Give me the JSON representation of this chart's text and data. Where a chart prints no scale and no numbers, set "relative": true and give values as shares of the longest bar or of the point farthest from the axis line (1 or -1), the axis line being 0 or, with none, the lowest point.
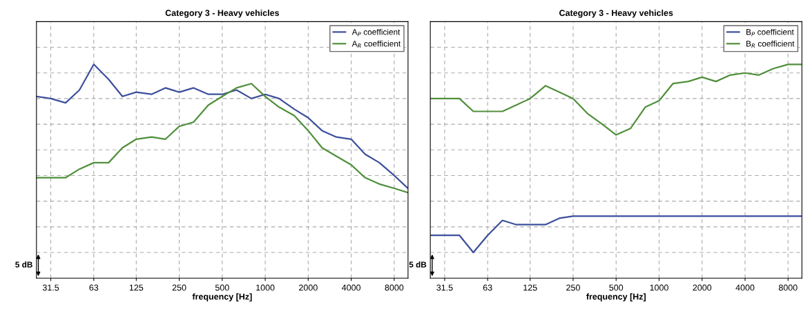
{
  "chart_data": [
    {
      "type": "line",
      "title": "Category 3 - Heavy vehicles",
      "xlabel": "frequency [Hz]",
      "relative": true,
      "log": "x",
      "grid": true,
      "legend": "top right",
      "tick_labels": "x",
      "marker": "none",
      "line_style": "solid",
      "x": [
        25,
        31.5,
        40,
        50,
        63,
        80,
        100,
        125,
        160,
        200,
        250,
        315,
        400,
        500,
        630,
        800,
        1000,
        1250,
        1600,
        2000,
        2500,
        3150,
        4000,
        5000,
        6300,
        8000,
        10000
      ],
      "xlim": [
        25,
        10000
      ],
      "xticks": [
        31.5,
        63,
        125,
        250,
        500,
        1000,
        2000,
        4000,
        8000
      ],
      "annotations": [
        "5 dB"
      ],
      "series": [
        {
          "name": "A$_{P}$ coefficient",
          "color": "#3c4f9c",
          "values": [
            0.85,
            0.84,
            0.82,
            0.88,
            1,
            0.93,
            0.85,
            0.87,
            0.86,
            0.89,
            0.87,
            0.89,
            0.86,
            0.86,
            0.88,
            0.84,
            0.86,
            0.84,
            0.79,
            0.75,
            0.69,
            0.66,
            0.65,
            0.58,
            0.54,
            0.48,
            0.42
          ]
        },
        {
          "name": "A$_{R}$ coefficient",
          "color": "#4f8f3a",
          "values": [
            0.47,
            0.47,
            0.47,
            0.51,
            0.54,
            0.54,
            0.61,
            0.65,
            0.66,
            0.65,
            0.71,
            0.73,
            0.81,
            0.85,
            0.89,
            0.91,
            0.85,
            0.8,
            0.76,
            0.69,
            0.61,
            0.57,
            0.53,
            0.47,
            0.44,
            0.42,
            0.4
          ]
        }
      ]
    },
    {
      "type": "line",
      "title": "Category 3 - Heavy vehicles",
      "xlabel": "frequency [Hz]",
      "relative": true,
      "log": "x",
      "grid": true,
      "legend": "top right",
      "tick_labels": "x",
      "marker": "none",
      "line_style": "solid",
      "x": [
        25,
        31.5,
        40,
        50,
        63,
        80,
        100,
        125,
        160,
        200,
        250,
        315,
        400,
        500,
        630,
        800,
        1000,
        1250,
        1600,
        2000,
        2500,
        3150,
        4000,
        5000,
        6300,
        8000,
        10000
      ],
      "xlim": [
        25,
        10000
      ],
      "xticks": [
        31.5,
        63,
        125,
        250,
        500,
        1000,
        2000,
        4000,
        8000
      ],
      "annotations": [
        "5 dB"
      ],
      "series": [
        {
          "name": "B$_{P}$ coefficient",
          "color": "#3c4f9c",
          "values": [
            0.2,
            0.2,
            0.2,
            0.12,
            0.2,
            0.27,
            0.25,
            0.25,
            0.25,
            0.28,
            0.29,
            0.29,
            0.29,
            0.29,
            0.29,
            0.29,
            0.29,
            0.29,
            0.29,
            0.29,
            0.29,
            0.29,
            0.29,
            0.29,
            0.29,
            0.29,
            0.29
          ]
        },
        {
          "name": "B$_{R}$ coefficient",
          "color": "#4f8f3a",
          "values": [
            0.84,
            0.84,
            0.84,
            0.78,
            0.78,
            0.78,
            0.81,
            0.84,
            0.9,
            0.87,
            0.84,
            0.77,
            0.72,
            0.67,
            0.7,
            0.8,
            0.83,
            0.91,
            0.92,
            0.94,
            0.92,
            0.95,
            0.96,
            0.95,
            0.98,
            1,
            1
          ]
        }
      ]
    }
  ]
}
